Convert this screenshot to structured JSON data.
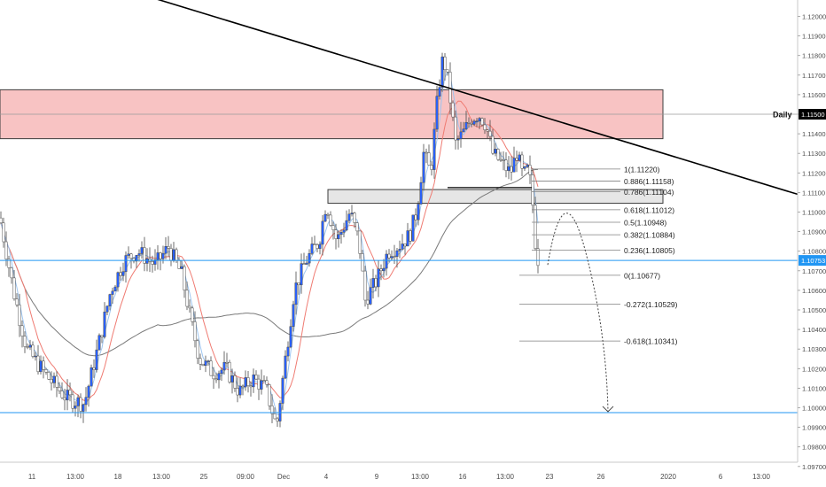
{
  "chart_data": {
    "type": "candlestick",
    "title": "",
    "price_axis": {
      "ylim": [
        1.0965,
        1.121
      ],
      "ticks": [
        "1.12000",
        "1.11900",
        "1.11800",
        "1.11700",
        "1.11600",
        "1.11500",
        "1.11400",
        "1.11300",
        "1.11200",
        "1.11100",
        "1.11000",
        "1.10900",
        "1.10800",
        "1.10700",
        "1.10600",
        "1.10500",
        "1.10400",
        "1.10300",
        "1.10200",
        "1.10100",
        "1.10000",
        "1.09900",
        "1.09800",
        "1.09700"
      ],
      "current_price_label": "1.10753",
      "current_price": 1.10753,
      "daily_label": "Daily",
      "daily_price_label": "1.11500",
      "daily_price": 1.115
    },
    "time_axis": {
      "ticks": [
        "11",
        "13:00",
        "18",
        "13:00",
        "25",
        "09:00",
        "Dec",
        "4",
        "9",
        "13:00",
        "16",
        "13:00",
        "23",
        "26",
        "2020",
        "6",
        "13:00"
      ]
    },
    "levels": {
      "resistance_zone": [
        1.11375,
        1.11625
      ],
      "consolidation_zone": [
        1.11045,
        1.11115
      ],
      "horizontal_lines": [
        1.10753,
        1.09975
      ]
    },
    "trendline": {
      "from": [
        0,
        1.1233
      ],
      "to": [
        1,
        1.111
      ]
    },
    "fibonacci": [
      {
        "label": "1(1.11220)",
        "price": 1.1122
      },
      {
        "label": "0.886(1.11158)",
        "price": 1.11158
      },
      {
        "label": "0.786(1.11104)",
        "price": 1.11104
      },
      {
        "label": "0.618(1.11012)",
        "price": 1.11012
      },
      {
        "label": "0.5(1.10948)",
        "price": 1.10948
      },
      {
        "label": "0.382(1.10884)",
        "price": 1.10884
      },
      {
        "label": "0.236(1.10805)",
        "price": 1.10805
      },
      {
        "label": "0(1.10677)",
        "price": 1.10677
      },
      {
        "label": "-0.272(1.10529)",
        "price": 1.10529
      },
      {
        "label": "-0.618(1.10341)",
        "price": 1.10341
      }
    ],
    "projection": {
      "from_price": 1.1073,
      "peak_price": 1.1099,
      "target_price": 1.0998
    },
    "anchors": [
      [
        0,
        1.1097
      ],
      [
        15,
        1.106
      ],
      [
        30,
        1.103
      ],
      [
        55,
        1.1015
      ],
      [
        75,
        1.1005
      ],
      [
        95,
        1.1002
      ],
      [
        110,
        1.103
      ],
      [
        125,
        1.106
      ],
      [
        140,
        1.1075
      ],
      [
        155,
        1.108
      ],
      [
        175,
        1.1073
      ],
      [
        190,
        1.1082
      ],
      [
        205,
        1.1068
      ],
      [
        215,
        1.1045
      ],
      [
        225,
        1.1025
      ],
      [
        240,
        1.1018
      ],
      [
        255,
        1.102
      ],
      [
        270,
        1.1008
      ],
      [
        285,
        1.1015
      ],
      [
        300,
        1.101
      ],
      [
        312,
        1.099
      ],
      [
        322,
        1.1025
      ],
      [
        332,
        1.106
      ],
      [
        345,
        1.1075
      ],
      [
        360,
        1.1085
      ],
      [
        368,
        1.1105
      ],
      [
        380,
        1.1085
      ],
      [
        395,
        1.11
      ],
      [
        405,
        1.1085
      ],
      [
        412,
        1.1055
      ],
      [
        425,
        1.1065
      ],
      [
        438,
        1.108
      ],
      [
        450,
        1.1083
      ],
      [
        462,
        1.1088
      ],
      [
        470,
        1.11
      ],
      [
        478,
        1.113
      ],
      [
        486,
        1.112
      ],
      [
        494,
        1.116
      ],
      [
        500,
        1.118
      ],
      [
        506,
        1.1165
      ],
      [
        514,
        1.1135
      ],
      [
        522,
        1.114
      ],
      [
        532,
        1.1148
      ],
      [
        540,
        1.115
      ],
      [
        548,
        1.1145
      ],
      [
        556,
        1.113
      ],
      [
        566,
        1.1125
      ],
      [
        576,
        1.112
      ],
      [
        583,
        1.113
      ],
      [
        590,
        1.1118
      ],
      [
        596,
        1.1122
      ],
      [
        600,
        1.111
      ],
      [
        604,
        1.1085
      ],
      [
        608,
        1.1073
      ]
    ],
    "colors": {
      "bull": "#2962ff",
      "bear": "#ffffff",
      "outline": "#4a4a4a",
      "zone_fill": "#f8c3c3",
      "zone_border": "#3c3c3c",
      "level_line": "#2196f3",
      "trendline": "#000000",
      "ma_fast": "#9ec5f0",
      "ma_mid": "#ef7b72",
      "ma_slow": "#7a7a7a",
      "fib": "#808080",
      "axis_text": "#4a4a4a"
    }
  }
}
